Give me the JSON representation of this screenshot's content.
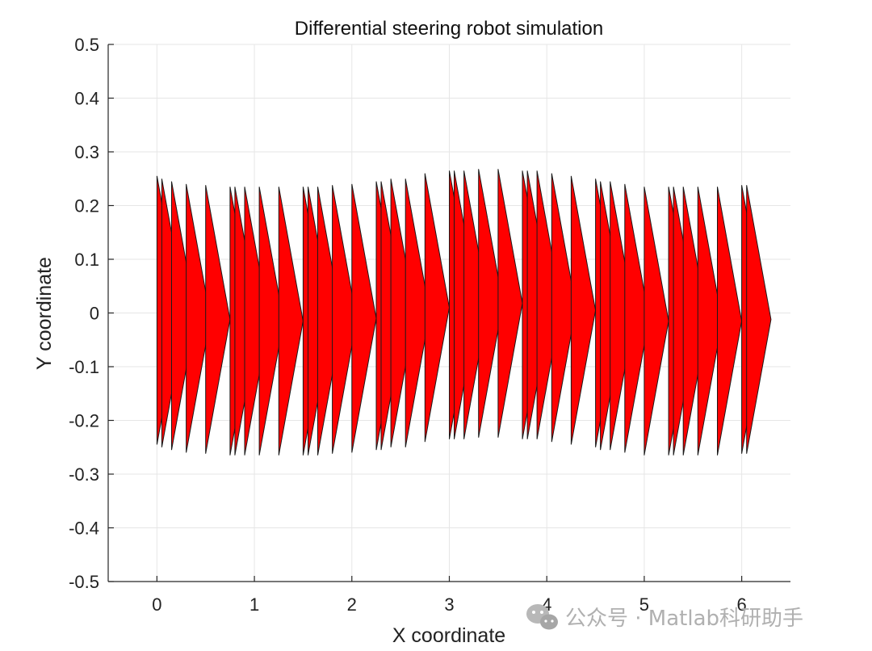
{
  "chart_data": {
    "type": "scatter",
    "title": "Differential steering robot simulation",
    "xlabel": "X coordinate",
    "ylabel": "Y coordinate",
    "xlim": [
      -0.5,
      6.5
    ],
    "ylim": [
      -0.5,
      0.5
    ],
    "xticks": [
      "0",
      "1",
      "2",
      "3",
      "4",
      "5",
      "6"
    ],
    "yticks": [
      "0.5",
      "0.4",
      "0.3",
      "0.2",
      "0.1",
      "0",
      "-0.1",
      "-0.2",
      "-0.3",
      "-0.4",
      "-0.5"
    ],
    "grid": true,
    "marker": "arrow-triangle",
    "marker_color": "#ff0000",
    "robot_length": 0.25,
    "robot_half_width": 0.25,
    "series": [
      {
        "x": [
          0,
          0.05,
          0.15,
          0.3,
          0.5,
          0.75,
          0.8,
          0.9,
          1.05,
          1.25,
          1.5,
          1.55,
          1.65,
          1.8,
          2.0,
          2.25,
          2.3,
          2.4,
          2.55,
          2.75,
          3.0,
          3.05,
          3.15,
          3.3,
          3.5,
          3.75,
          3.8,
          3.9,
          4.05,
          4.25,
          4.5,
          4.55,
          4.65,
          4.8,
          5.0,
          5.25,
          5.3,
          5.4,
          5.55,
          5.75,
          6.0,
          6.05
        ],
        "y": [
          0.005,
          0.0,
          -0.005,
          -0.01,
          -0.012,
          -0.015,
          -0.015,
          -0.015,
          -0.015,
          -0.015,
          -0.015,
          -0.015,
          -0.015,
          -0.012,
          -0.01,
          -0.005,
          -0.005,
          0.0,
          0.0,
          0.01,
          0.015,
          0.015,
          0.015,
          0.018,
          0.018,
          0.015,
          0.015,
          0.015,
          0.01,
          0.005,
          0.0,
          -0.005,
          -0.005,
          -0.01,
          -0.015,
          -0.015,
          -0.015,
          -0.015,
          -0.015,
          -0.015,
          -0.012,
          -0.012
        ]
      }
    ]
  },
  "watermark": {
    "text": "公众号 · Matlab科研助手",
    "icon": "wechat-icon"
  }
}
